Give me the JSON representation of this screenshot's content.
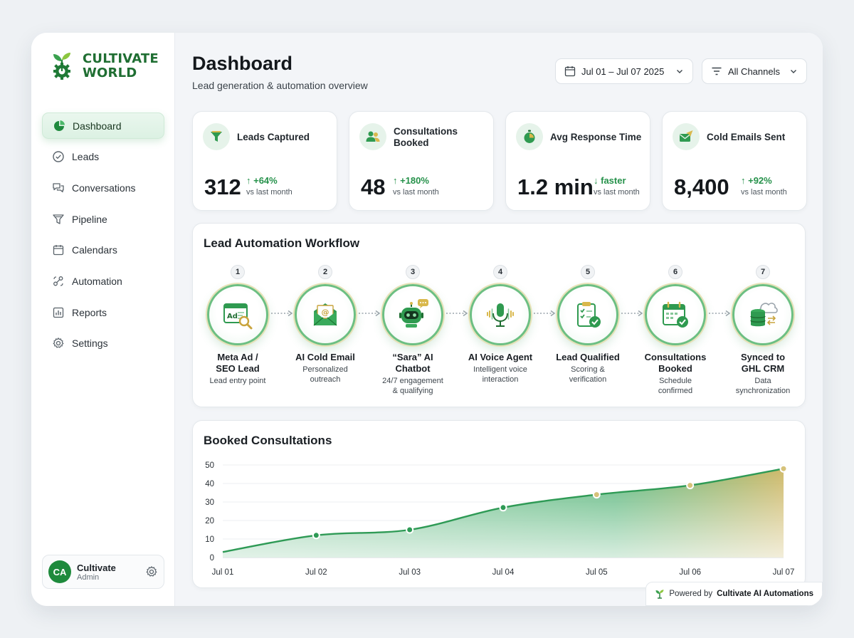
{
  "brand": {
    "line1": "CULTIVATE",
    "line2": "WORLD"
  },
  "nav": [
    {
      "label": "Dashboard",
      "icon": "pie-chart-icon",
      "active": true
    },
    {
      "label": "Leads",
      "icon": "check-circle-icon"
    },
    {
      "label": "Conversations",
      "icon": "chat-bubbles-icon"
    },
    {
      "label": "Pipeline",
      "icon": "funnel-icon"
    },
    {
      "label": "Calendars",
      "icon": "calendar-icon"
    },
    {
      "label": "Automation",
      "icon": "automation-icon"
    },
    {
      "label": "Reports",
      "icon": "bar-chart-icon"
    },
    {
      "label": "Settings",
      "icon": "gear-icon"
    }
  ],
  "user": {
    "initials": "CA",
    "name": "Cultivate",
    "role": "Admin"
  },
  "header": {
    "title": "Dashboard",
    "subtitle": "Lead generation & automation overview",
    "date_range": "Jul 01 – Jul 07 2025",
    "channels": "All Channels"
  },
  "stats": [
    {
      "label": "Leads Captured",
      "value": "312",
      "delta": "↑ +64%",
      "note": "vs last month",
      "icon": "funnel-icon"
    },
    {
      "label": "Consultations Booked",
      "value": "48",
      "delta": "↑ +180%",
      "note": "vs last month",
      "icon": "people-icon"
    },
    {
      "label": "Avg Response Time",
      "value": "1.2 min",
      "delta": "↓ faster",
      "note": "vs last month",
      "icon": "timer-icon"
    },
    {
      "label": "Cold Emails Sent",
      "value": "8,400",
      "delta": "↑ +92%",
      "note": "vs last month",
      "icon": "send-mail-icon"
    }
  ],
  "workflow": {
    "title": "Lead Automation Workflow",
    "steps": [
      {
        "num": "1",
        "name": "Meta Ad /\nSEO Lead",
        "desc": "Lead entry point",
        "icon": "ad-search-icon"
      },
      {
        "num": "2",
        "name": "AI Cold Email",
        "desc": "Personalized\noutreach",
        "icon": "envelope-icon"
      },
      {
        "num": "3",
        "name": "“Sara” AI\nChatbot",
        "desc": "24/7 engagement\n& qualifying",
        "icon": "robot-icon"
      },
      {
        "num": "4",
        "name": "AI Voice Agent",
        "desc": "Intelligent voice\ninteraction",
        "icon": "microphone-icon"
      },
      {
        "num": "5",
        "name": "Lead Qualified",
        "desc": "Scoring &\nverification",
        "icon": "clipboard-check-icon"
      },
      {
        "num": "6",
        "name": "Consultations\nBooked",
        "desc": "Schedule\nconfirmed",
        "icon": "calendar-check-icon"
      },
      {
        "num": "7",
        "name": "Synced to\nGHL CRM",
        "desc": "Data\nsynchronization",
        "icon": "database-cloud-icon"
      }
    ]
  },
  "chart_data": {
    "type": "area",
    "title": "Booked Consultations",
    "categories": [
      "Jul 01",
      "Jul 02",
      "Jul 03",
      "Jul 04",
      "Jul 05",
      "Jul 06",
      "Jul 07"
    ],
    "values": [
      3,
      12,
      15,
      27,
      34,
      39,
      48
    ],
    "yticks": [
      0,
      10,
      20,
      30,
      40,
      50
    ],
    "ylim": [
      0,
      50
    ],
    "grid": true,
    "colors": {
      "line": "#2e9a55",
      "fill_start": "#2fa35a",
      "fill_end": "#c9b25a"
    }
  },
  "footer": {
    "prefix": "Powered by",
    "brand": "Cultivate AI Automations"
  }
}
